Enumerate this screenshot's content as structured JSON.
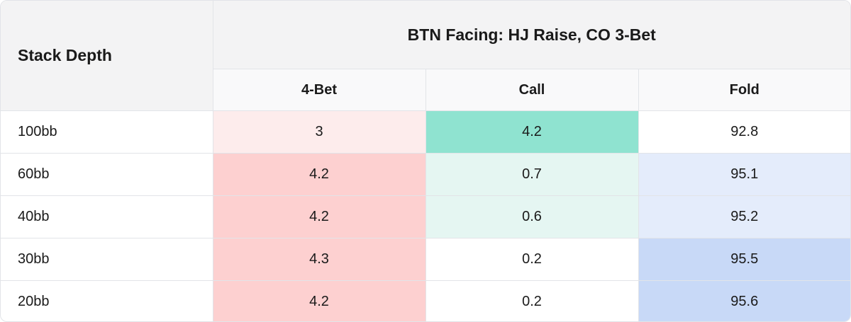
{
  "chart_data": {
    "type": "table",
    "row_header": "Stack Depth",
    "group_header": "BTN Facing: HJ Raise, CO 3-Bet",
    "columns": [
      "4-Bet",
      "Call",
      "Fold"
    ],
    "rows": [
      {
        "label": "100bb",
        "values": [
          "3",
          "4.2",
          "92.8"
        ],
        "colors": [
          "#fdecec",
          "#8fe3d0",
          "#ffffff"
        ]
      },
      {
        "label": "60bb",
        "values": [
          "4.2",
          "0.7",
          "95.1"
        ],
        "colors": [
          "#fdd0d0",
          "#e5f6f2",
          "#e4ecfb"
        ]
      },
      {
        "label": "40bb",
        "values": [
          "4.2",
          "0.6",
          "95.2"
        ],
        "colors": [
          "#fdd0d0",
          "#e5f6f2",
          "#e4ecfb"
        ]
      },
      {
        "label": "30bb",
        "values": [
          "4.3",
          "0.2",
          "95.5"
        ],
        "colors": [
          "#fdd0d0",
          "#ffffff",
          "#c8d9f7"
        ]
      },
      {
        "label": "20bb",
        "values": [
          "4.2",
          "0.2",
          "95.6"
        ],
        "colors": [
          "#fdd0d0",
          "#ffffff",
          "#c8d9f7"
        ]
      }
    ]
  }
}
